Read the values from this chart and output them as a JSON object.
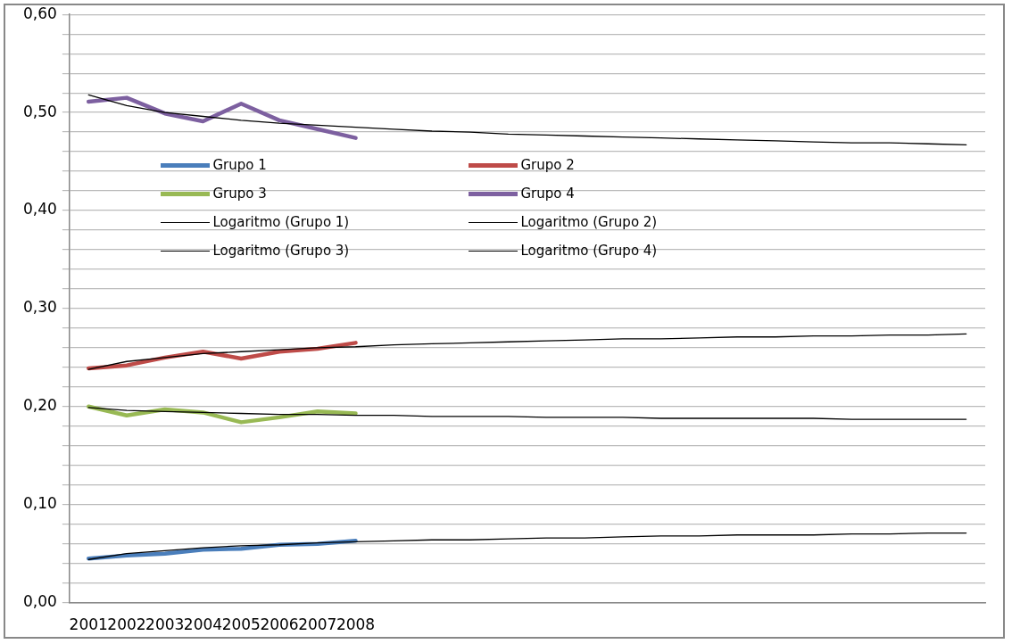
{
  "chart_data": {
    "type": "line",
    "categories": [
      "2001",
      "2002",
      "2003",
      "2004",
      "2005",
      "2006",
      "2007",
      "2008",
      null,
      null,
      null,
      null,
      null,
      null,
      null,
      null,
      null,
      null,
      null,
      null,
      null,
      null,
      null,
      null
    ],
    "series": [
      {
        "name": "Grupo 1",
        "color": "#4a7ebb",
        "values": [
          0.045,
          0.048,
          0.05,
          0.054,
          0.055,
          0.059,
          0.06,
          0.063,
          null,
          null,
          null,
          null,
          null,
          null,
          null,
          null,
          null,
          null,
          null,
          null,
          null,
          null,
          null,
          null
        ]
      },
      {
        "name": "Grupo 2",
        "color": "#be4b48",
        "values": [
          0.239,
          0.242,
          0.25,
          0.256,
          0.249,
          0.256,
          0.259,
          0.265,
          null,
          null,
          null,
          null,
          null,
          null,
          null,
          null,
          null,
          null,
          null,
          null,
          null,
          null,
          null,
          null
        ]
      },
      {
        "name": "Grupo 3",
        "color": "#98b954",
        "values": [
          0.2,
          0.191,
          0.197,
          0.194,
          0.184,
          0.189,
          0.195,
          0.193,
          null,
          null,
          null,
          null,
          null,
          null,
          null,
          null,
          null,
          null,
          null,
          null,
          null,
          null,
          null,
          null
        ]
      },
      {
        "name": "Grupo 4",
        "color": "#7d60a0",
        "values": [
          0.511,
          0.515,
          0.499,
          0.491,
          0.509,
          0.492,
          0.483,
          0.474,
          null,
          null,
          null,
          null,
          null,
          null,
          null,
          null,
          null,
          null,
          null,
          null,
          null,
          null,
          null,
          null
        ]
      },
      {
        "name": "Logaritmo (Grupo 1)",
        "color": "#000000",
        "values": [
          0.044,
          0.05,
          0.053,
          0.056,
          0.058,
          0.059,
          0.061,
          0.062,
          0.063,
          0.064,
          0.064,
          0.065,
          0.066,
          0.066,
          0.067,
          0.068,
          0.068,
          0.069,
          0.069,
          0.069,
          0.07,
          0.07,
          0.071,
          0.071
        ]
      },
      {
        "name": "Logaritmo (Grupo 2)",
        "color": "#000000",
        "values": [
          0.238,
          0.246,
          0.25,
          0.254,
          0.256,
          0.258,
          0.26,
          0.261,
          0.263,
          0.264,
          0.265,
          0.266,
          0.267,
          0.268,
          0.269,
          0.269,
          0.27,
          0.271,
          0.271,
          0.272,
          0.272,
          0.273,
          0.273,
          0.274
        ]
      },
      {
        "name": "Logaritmo (Grupo 3)",
        "color": "#000000",
        "values": [
          0.199,
          0.196,
          0.195,
          0.194,
          0.193,
          0.192,
          0.192,
          0.191,
          0.191,
          0.19,
          0.19,
          0.19,
          0.189,
          0.189,
          0.189,
          0.188,
          0.188,
          0.188,
          0.188,
          0.188,
          0.187,
          0.187,
          0.187,
          0.187
        ]
      },
      {
        "name": "Logaritmo (Grupo 4)",
        "color": "#000000",
        "values": [
          0.518,
          0.507,
          0.5,
          0.496,
          0.492,
          0.489,
          0.487,
          0.485,
          0.483,
          0.481,
          0.48,
          0.478,
          0.477,
          0.476,
          0.475,
          0.474,
          0.473,
          0.472,
          0.471,
          0.47,
          0.469,
          0.469,
          0.468,
          0.467
        ]
      }
    ],
    "ylim": [
      0,
      0.6
    ],
    "yticks": [
      {
        "value": 0,
        "label": "0,00"
      },
      {
        "value": 0.02,
        "label": null
      },
      {
        "value": 0.04,
        "label": null
      },
      {
        "value": 0.06,
        "label": null
      },
      {
        "value": 0.08,
        "label": null
      },
      {
        "value": 0.1,
        "label": "0,10"
      },
      {
        "value": 0.12,
        "label": null
      },
      {
        "value": 0.14,
        "label": null
      },
      {
        "value": 0.16,
        "label": null
      },
      {
        "value": 0.18,
        "label": null
      },
      {
        "value": 0.2,
        "label": "0,20"
      },
      {
        "value": 0.22,
        "label": null
      },
      {
        "value": 0.24,
        "label": null
      },
      {
        "value": 0.26,
        "label": null
      },
      {
        "value": 0.28,
        "label": null
      },
      {
        "value": 0.3,
        "label": "0,30"
      },
      {
        "value": 0.32,
        "label": null
      },
      {
        "value": 0.34,
        "label": null
      },
      {
        "value": 0.36,
        "label": null
      },
      {
        "value": 0.38,
        "label": null
      },
      {
        "value": 0.4,
        "label": "0,40"
      },
      {
        "value": 0.42,
        "label": null
      },
      {
        "value": 0.44,
        "label": null
      },
      {
        "value": 0.46,
        "label": null
      },
      {
        "value": 0.48,
        "label": null
      },
      {
        "value": 0.5,
        "label": "0,50"
      },
      {
        "value": 0.52,
        "label": null
      },
      {
        "value": 0.54,
        "label": null
      },
      {
        "value": 0.56,
        "label": null
      },
      {
        "value": 0.58,
        "label": null
      },
      {
        "value": 0.6,
        "label": "0,60"
      }
    ],
    "grid": "y",
    "legend": "top",
    "marker": "none",
    "line_style": "solid"
  }
}
